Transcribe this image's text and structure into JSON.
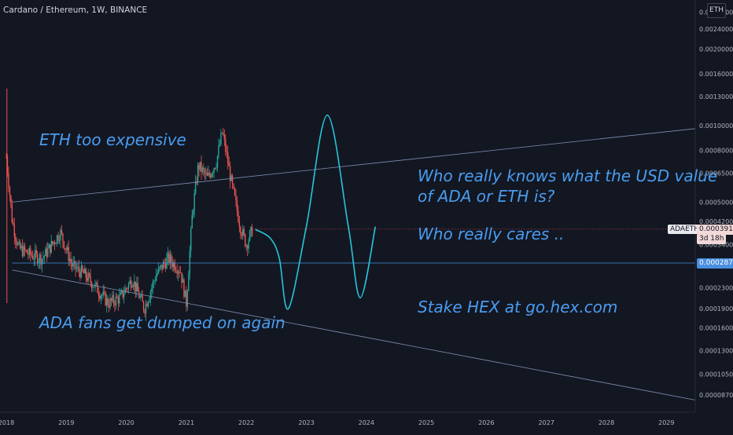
{
  "header": {
    "title": "Cardano / Ethereum, 1W, BINANCE",
    "currency_badge": "ETH"
  },
  "annotations": {
    "top_left": "ETH too expensive",
    "bottom_left": "ADA fans get dumped on again",
    "right_question_line1": "Who really knows what the USD value",
    "right_question_line2": "of ADA or ETH is?",
    "right_cares": "Who really cares ..",
    "right_stake": "Stake HEX at go.hex.com"
  },
  "price_labels": {
    "symbol": "ADAETH",
    "current_price": "0.0003912",
    "countdown": "3d 18h",
    "support_price": "0.0002876"
  },
  "colors": {
    "background": "#131722",
    "up_candle": "#26a69a",
    "down_candle": "#ef5350",
    "annotation_text": "#4a9cf0",
    "projection_line": "#26c6da",
    "channel_line": "#7f8fb3",
    "support_line": "#4a8fe0"
  },
  "chart_data": {
    "type": "candlestick",
    "symbol": "ADAETH",
    "interval": "1W",
    "exchange": "BINANCE",
    "y_scale": "log",
    "y_ticks": [
      "0.0028000",
      "0.0024000",
      "0.0020000",
      "0.0016000",
      "0.0013000",
      "0.0010000",
      "0.0008000",
      "0.0006500",
      "0.0005000",
      "0.0004200",
      "0.0003400",
      "0.0002300",
      "0.0001900",
      "0.0001600",
      "0.0001300",
      "0.0001050",
      "0.0000870"
    ],
    "x_ticks": [
      "2018",
      "2019",
      "2020",
      "2021",
      "2022",
      "2023",
      "2024",
      "2025",
      "2026",
      "2027",
      "2028",
      "2029"
    ],
    "current_price": 0.0003912,
    "support_level": 0.0002876,
    "price_path": [
      [
        2018.0,
        0.00075
      ],
      [
        2018.1,
        0.00042
      ],
      [
        2018.2,
        0.00033
      ],
      [
        2018.4,
        0.00031
      ],
      [
        2018.6,
        0.0003
      ],
      [
        2018.9,
        0.00038
      ],
      [
        2019.1,
        0.00028
      ],
      [
        2019.3,
        0.00026
      ],
      [
        2019.5,
        0.00023
      ],
      [
        2019.7,
        0.0002
      ],
      [
        2019.9,
        0.00021
      ],
      [
        2020.1,
        0.00025
      ],
      [
        2020.3,
        0.00019
      ],
      [
        2020.5,
        0.00026
      ],
      [
        2020.7,
        0.0003
      ],
      [
        2020.9,
        0.00027
      ],
      [
        2021.0,
        0.0002
      ],
      [
        2021.1,
        0.00045
      ],
      [
        2021.2,
        0.0007
      ],
      [
        2021.35,
        0.00062
      ],
      [
        2021.5,
        0.00072
      ],
      [
        2021.6,
        0.00095
      ],
      [
        2021.75,
        0.0006
      ],
      [
        2021.9,
        0.0004
      ],
      [
        2022.0,
        0.00034
      ],
      [
        2022.1,
        0.00039
      ]
    ],
    "projection_path": [
      [
        2022.15,
        0.00039
      ],
      [
        2022.4,
        0.00036
      ],
      [
        2022.55,
        0.0003
      ],
      [
        2022.7,
        0.00019
      ],
      [
        2023.0,
        0.0004
      ],
      [
        2023.35,
        0.0011
      ],
      [
        2023.7,
        0.0004
      ],
      [
        2023.9,
        0.00021
      ],
      [
        2024.15,
        0.0004
      ]
    ],
    "channel_upper": [
      [
        2018.1,
        0.0005
      ],
      [
        2029.6,
        0.00098
      ]
    ],
    "channel_lower": [
      [
        2018.1,
        0.00027
      ],
      [
        2029.6,
        8.2e-05
      ]
    ]
  }
}
